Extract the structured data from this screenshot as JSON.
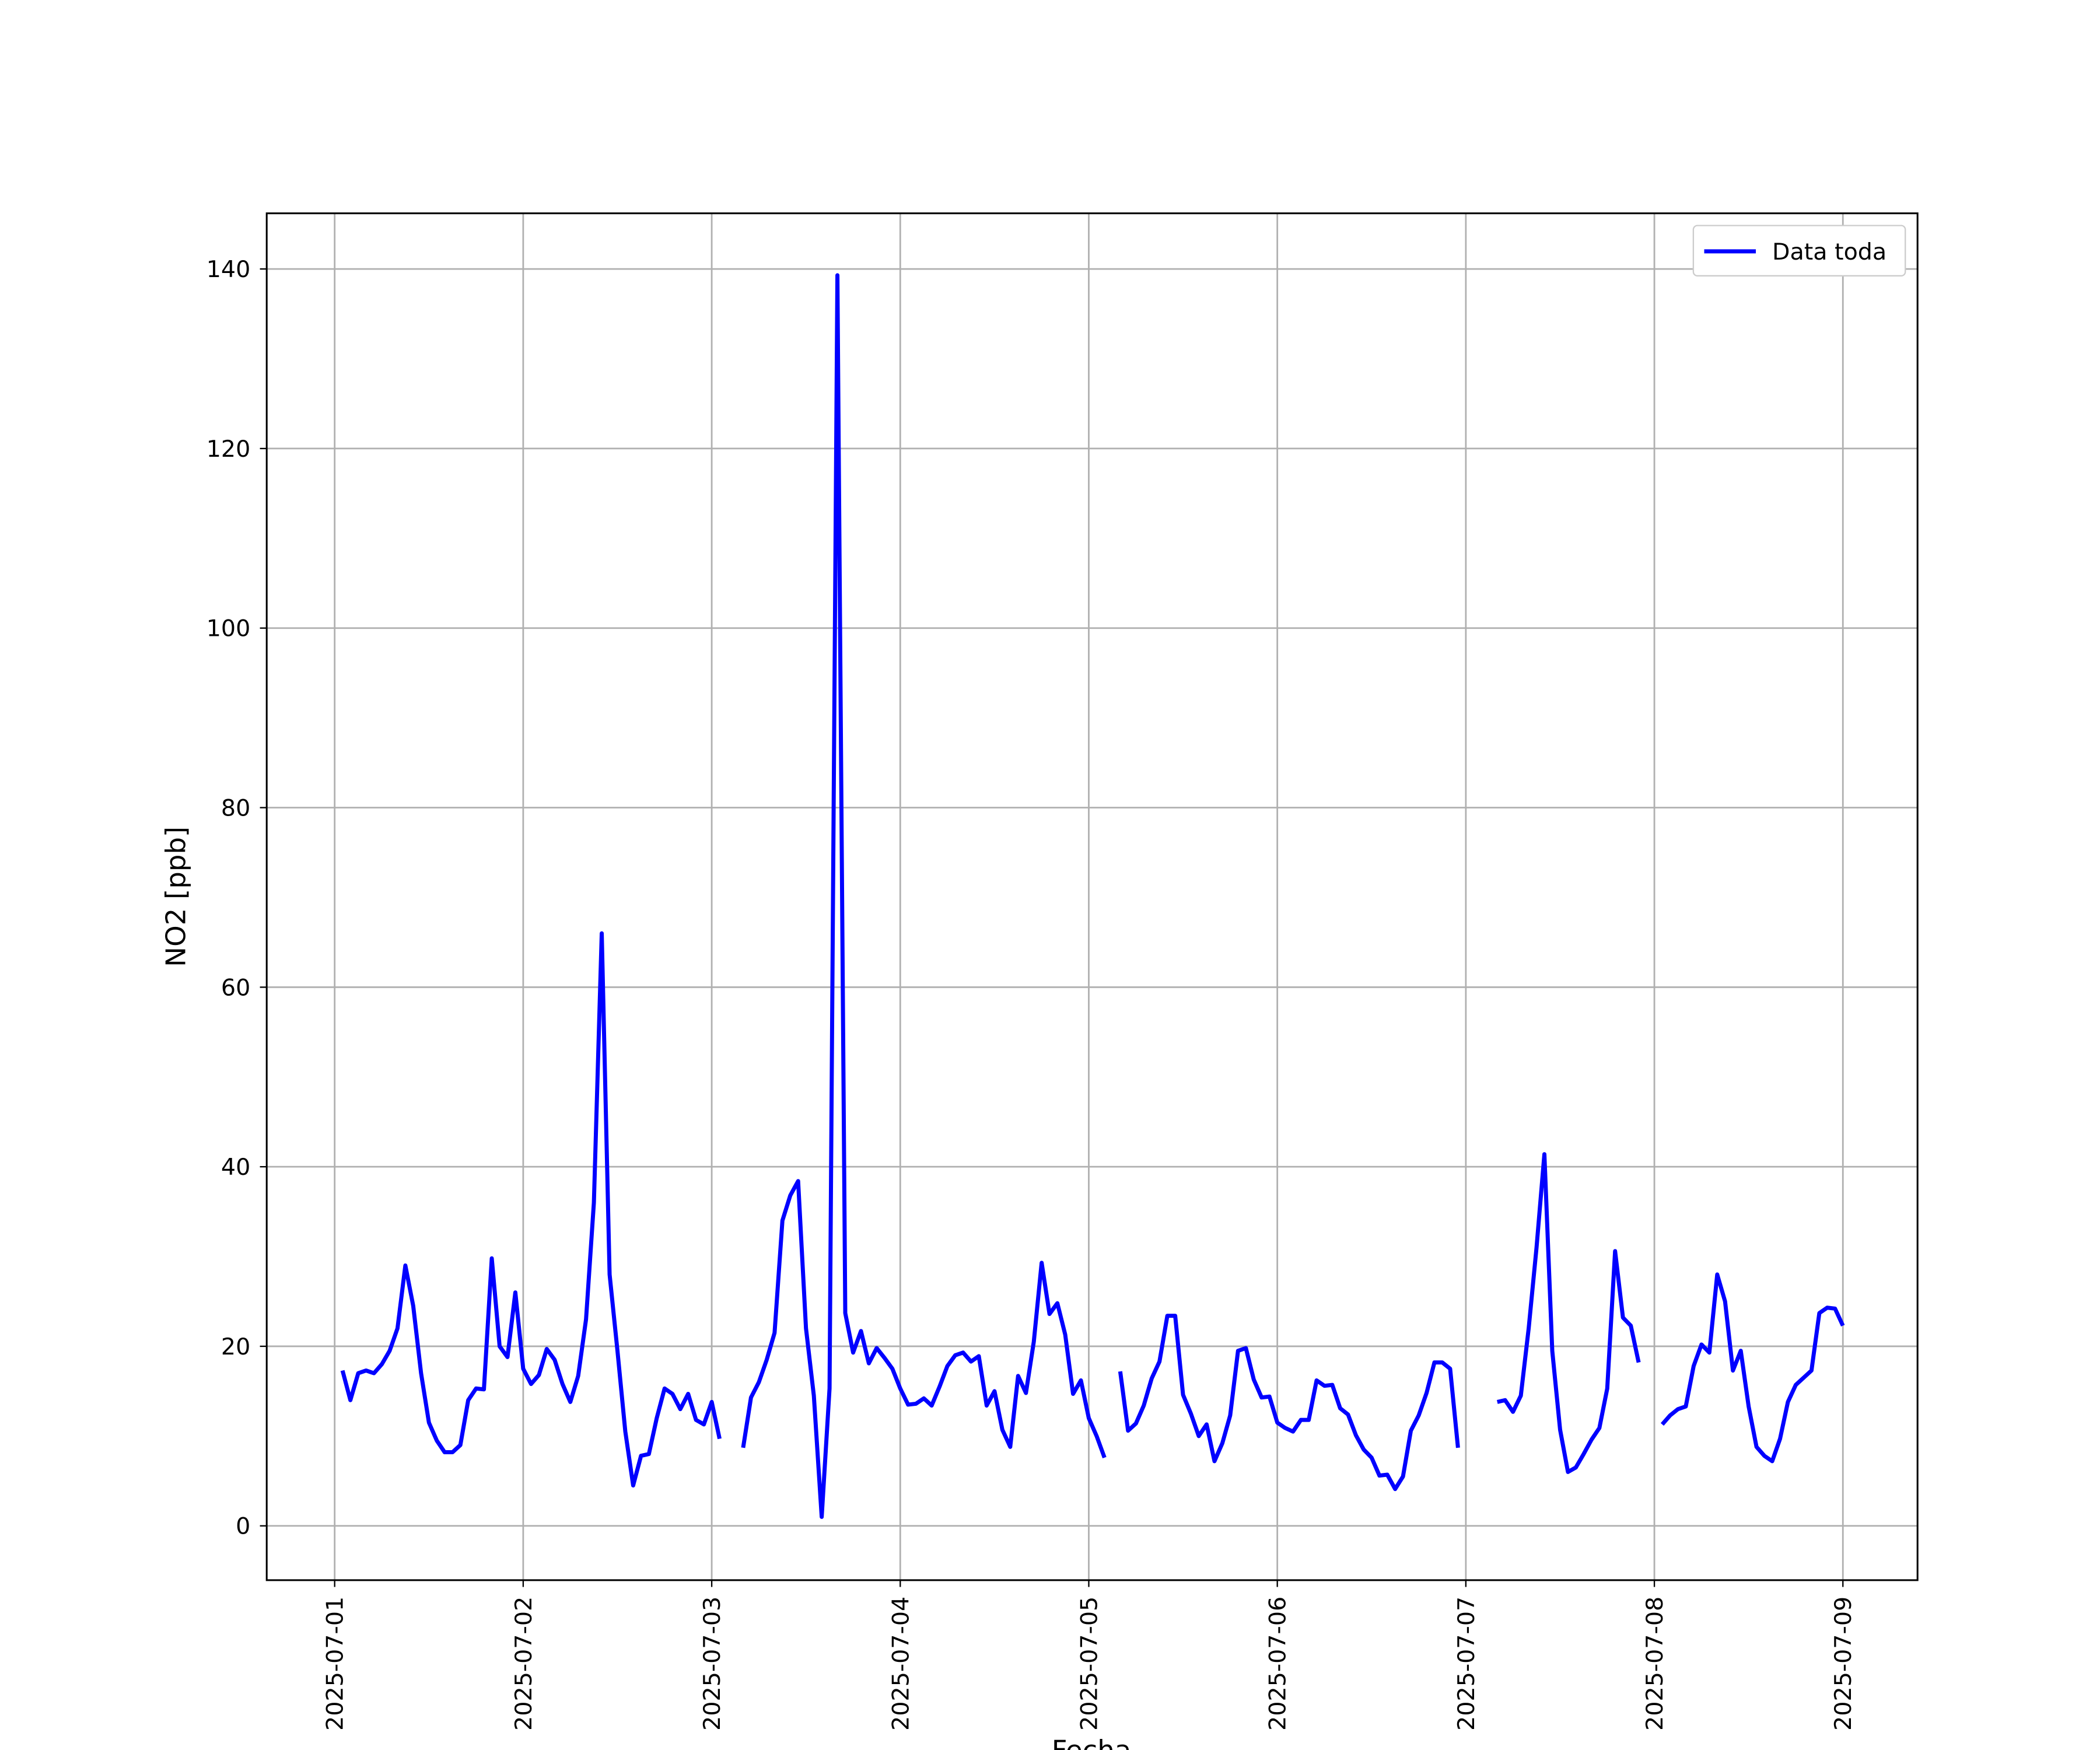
{
  "chart_data": {
    "type": "line",
    "xlabel": "Fecha",
    "ylabel": "NO2 [ppb]",
    "xlim": [
      "2025-06-30T15:21",
      "2025-07-09T09:30"
    ],
    "xticks": [
      "2025-07-01",
      "2025-07-02",
      "2025-07-03",
      "2025-07-04",
      "2025-07-05",
      "2025-07-06",
      "2025-07-07",
      "2025-07-08",
      "2025-07-09"
    ],
    "ylim": [
      -6.05,
      146.2
    ],
    "yticks": [
      0,
      20,
      40,
      60,
      80,
      100,
      120,
      140
    ],
    "grid": true,
    "legend": "upper right",
    "x": [
      "2025-07-01T01:00",
      "2025-07-01T02:00",
      "2025-07-01T03:00",
      "2025-07-01T04:00",
      "2025-07-01T05:00",
      "2025-07-01T06:00",
      "2025-07-01T07:00",
      "2025-07-01T08:00",
      "2025-07-01T09:00",
      "2025-07-01T10:00",
      "2025-07-01T11:00",
      "2025-07-01T12:00",
      "2025-07-01T13:00",
      "2025-07-01T14:00",
      "2025-07-01T15:00",
      "2025-07-01T16:00",
      "2025-07-01T17:00",
      "2025-07-01T18:00",
      "2025-07-01T19:00",
      "2025-07-01T20:00",
      "2025-07-01T21:00",
      "2025-07-01T22:00",
      "2025-07-01T23:00",
      "2025-07-02T00:00",
      "2025-07-02T01:00",
      "2025-07-02T02:00",
      "2025-07-02T03:00",
      "2025-07-02T04:00",
      "2025-07-02T05:00",
      "2025-07-02T06:00",
      "2025-07-02T07:00",
      "2025-07-02T08:00",
      "2025-07-02T09:00",
      "2025-07-02T10:00",
      "2025-07-02T11:00",
      "2025-07-02T12:00",
      "2025-07-02T13:00",
      "2025-07-02T14:00",
      "2025-07-02T15:00",
      "2025-07-02T16:00",
      "2025-07-02T17:00",
      "2025-07-02T18:00",
      "2025-07-02T19:00",
      "2025-07-02T20:00",
      "2025-07-02T21:00",
      "2025-07-02T22:00",
      "2025-07-02T23:00",
      "2025-07-03T00:00",
      "2025-07-03T01:00",
      "2025-07-03T02:00",
      "2025-07-03T03:00",
      "2025-07-03T04:00",
      "2025-07-03T05:00",
      "2025-07-03T06:00",
      "2025-07-03T07:00",
      "2025-07-03T08:00",
      "2025-07-03T09:00",
      "2025-07-03T10:00",
      "2025-07-03T11:00",
      "2025-07-03T12:00",
      "2025-07-03T13:00",
      "2025-07-03T14:00",
      "2025-07-03T15:00",
      "2025-07-03T16:00",
      "2025-07-03T17:00",
      "2025-07-03T18:00",
      "2025-07-03T19:00",
      "2025-07-03T20:00",
      "2025-07-03T21:00",
      "2025-07-03T22:00",
      "2025-07-03T23:00",
      "2025-07-04T00:00",
      "2025-07-04T01:00",
      "2025-07-04T02:00",
      "2025-07-04T03:00",
      "2025-07-04T04:00",
      "2025-07-04T05:00",
      "2025-07-04T06:00",
      "2025-07-04T07:00",
      "2025-07-04T08:00",
      "2025-07-04T09:00",
      "2025-07-04T10:00",
      "2025-07-04T11:00",
      "2025-07-04T12:00",
      "2025-07-04T13:00",
      "2025-07-04T14:00",
      "2025-07-04T15:00",
      "2025-07-04T16:00",
      "2025-07-04T17:00",
      "2025-07-04T18:00",
      "2025-07-04T19:00",
      "2025-07-04T20:00",
      "2025-07-04T21:00",
      "2025-07-04T22:00",
      "2025-07-04T23:00",
      "2025-07-05T00:00",
      "2025-07-05T01:00",
      "2025-07-05T02:00",
      "2025-07-05T03:00",
      "2025-07-05T04:00",
      "2025-07-05T05:00",
      "2025-07-05T06:00",
      "2025-07-05T07:00",
      "2025-07-05T08:00",
      "2025-07-05T09:00",
      "2025-07-05T10:00",
      "2025-07-05T11:00",
      "2025-07-05T12:00",
      "2025-07-05T13:00",
      "2025-07-05T14:00",
      "2025-07-05T15:00",
      "2025-07-05T16:00",
      "2025-07-05T17:00",
      "2025-07-05T18:00",
      "2025-07-05T19:00",
      "2025-07-05T20:00",
      "2025-07-05T21:00",
      "2025-07-05T22:00",
      "2025-07-05T23:00",
      "2025-07-06T00:00",
      "2025-07-06T01:00",
      "2025-07-06T02:00",
      "2025-07-06T03:00",
      "2025-07-06T04:00",
      "2025-07-06T05:00",
      "2025-07-06T06:00",
      "2025-07-06T07:00",
      "2025-07-06T08:00",
      "2025-07-06T09:00",
      "2025-07-06T10:00",
      "2025-07-06T11:00",
      "2025-07-06T12:00",
      "2025-07-06T13:00",
      "2025-07-06T14:00",
      "2025-07-06T15:00",
      "2025-07-06T16:00",
      "2025-07-06T17:00",
      "2025-07-06T18:00",
      "2025-07-06T19:00",
      "2025-07-06T20:00",
      "2025-07-06T21:00",
      "2025-07-06T22:00",
      "2025-07-06T23:00",
      "2025-07-07T00:00",
      "2025-07-07T01:00",
      "2025-07-07T02:00",
      "2025-07-07T03:00",
      "2025-07-07T04:00",
      "2025-07-07T05:00",
      "2025-07-07T06:00",
      "2025-07-07T07:00",
      "2025-07-07T08:00",
      "2025-07-07T09:00",
      "2025-07-07T10:00",
      "2025-07-07T11:00",
      "2025-07-07T12:00",
      "2025-07-07T13:00",
      "2025-07-07T14:00",
      "2025-07-07T15:00",
      "2025-07-07T16:00",
      "2025-07-07T17:00",
      "2025-07-07T18:00",
      "2025-07-07T19:00",
      "2025-07-07T20:00",
      "2025-07-07T21:00",
      "2025-07-07T22:00",
      "2025-07-07T23:00",
      "2025-07-08T00:00",
      "2025-07-08T01:00",
      "2025-07-08T02:00",
      "2025-07-08T03:00",
      "2025-07-08T04:00",
      "2025-07-08T05:00",
      "2025-07-08T06:00",
      "2025-07-08T07:00",
      "2025-07-08T08:00",
      "2025-07-08T09:00",
      "2025-07-08T10:00",
      "2025-07-08T11:00",
      "2025-07-08T12:00",
      "2025-07-08T13:00",
      "2025-07-08T14:00",
      "2025-07-08T15:00",
      "2025-07-08T16:00",
      "2025-07-08T17:00",
      "2025-07-08T18:00",
      "2025-07-08T19:00",
      "2025-07-08T20:00",
      "2025-07-08T21:00",
      "2025-07-08T22:00",
      "2025-07-08T23:00",
      "2025-07-09T00:00"
    ],
    "series": [
      {
        "name": "Data toda",
        "color": "#0000ff",
        "values": [
          17.3,
          14,
          17,
          17.3,
          17,
          18,
          19.5,
          22,
          29,
          24.5,
          17,
          11.5,
          9.5,
          8.2,
          8.2,
          9,
          14,
          15.3,
          15.2,
          29.8,
          20,
          18.8,
          26,
          17.5,
          15.8,
          16.8,
          19.7,
          18.5,
          15.8,
          13.8,
          16.7,
          23,
          36,
          66,
          28,
          19.5,
          10.5,
          4.5,
          7.8,
          8,
          12,
          15.3,
          14.7,
          13,
          14.7,
          11.8,
          11.3,
          13.8,
          9.7,
          null,
          null,
          8.7,
          14.3,
          16,
          18.5,
          21.5,
          34,
          36.8,
          38.4,
          22,
          14.5,
          1,
          15.3,
          139.3,
          23.7,
          19.3,
          21.7,
          18.1,
          19.8,
          18.7,
          17.5,
          15.3,
          13.5,
          13.6,
          14.2,
          13.4,
          15.5,
          17.8,
          19,
          19.3,
          18.3,
          18.9,
          13.4,
          15,
          10.7,
          8.8,
          16.7,
          14.8,
          20.5,
          29.3,
          23.6,
          24.8,
          21.3,
          14.7,
          16.2,
          12,
          10,
          7.6,
          null,
          17.2,
          10.6,
          11.4,
          13.4,
          16.4,
          18.3,
          23.4,
          23.4,
          14.6,
          12.5,
          10,
          11.3,
          7.2,
          9.2,
          12.3,
          19.5,
          19.8,
          16.3,
          14.3,
          14.4,
          11.5,
          10.9,
          10.5,
          11.8,
          11.8,
          16.2,
          15.6,
          15.7,
          13.1,
          12.4,
          10.1,
          8.5,
          7.6,
          5.6,
          5.7,
          4.1,
          5.5,
          10.6,
          12.3,
          14.8,
          18.2,
          18.2,
          17.5,
          8.7,
          null,
          null,
          null,
          null,
          13.8,
          14,
          12.7,
          14.5,
          22,
          31,
          41.4,
          19.5,
          10.7,
          6,
          6.5,
          8,
          9.6,
          10.9,
          15.3,
          30.6,
          23.2,
          22.3,
          18.2,
          null,
          null,
          11.3,
          12.3,
          13,
          13.3,
          17.8,
          20.2,
          19.3,
          28,
          25,
          17.3,
          19.5,
          13.3,
          8.8,
          7.8,
          7.2,
          9.7,
          13.8,
          15.7,
          16.5,
          17.3,
          23.7,
          24.3,
          24.2,
          22.3
        ]
      }
    ]
  }
}
